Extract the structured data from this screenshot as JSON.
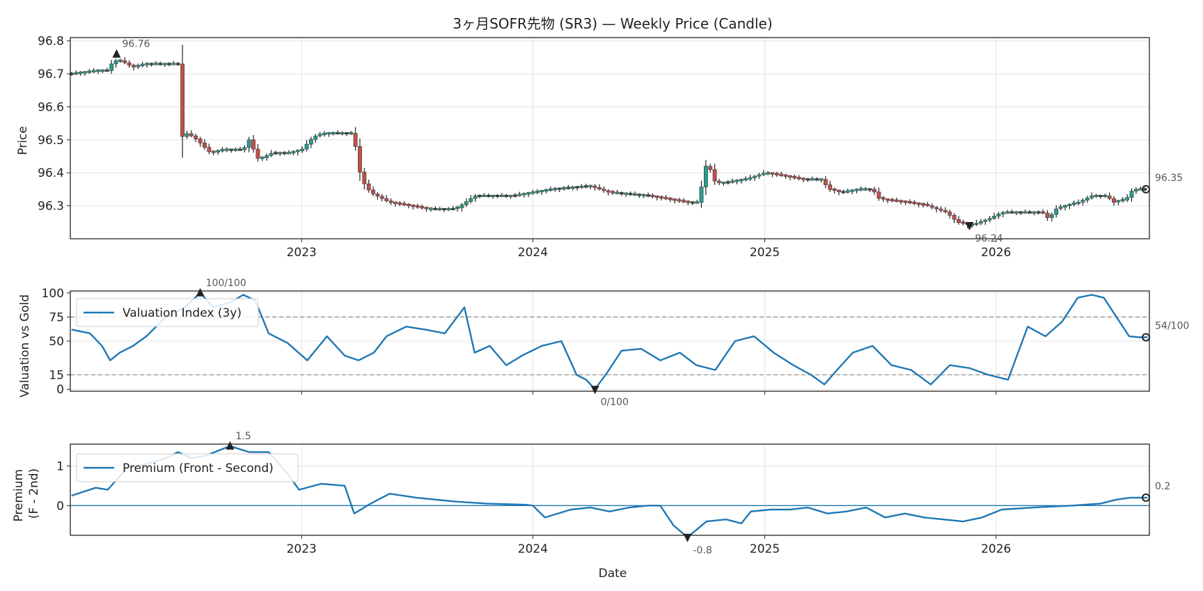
{
  "colors": {
    "up": "#2a9d8f",
    "down": "#c0504d",
    "body_dark": "#444444",
    "line": "#1f77b4",
    "dash": "#999999",
    "grid": "#e3e3e3",
    "marker": "#222222"
  },
  "chart_data": [
    {
      "type": "candlestick",
      "title": "3ヶ月SOFR先物 (SR3) — Weekly Price (Candle)",
      "ylabel": "Price",
      "ylim": [
        96.2,
        96.81
      ],
      "yticks": [
        "96.3",
        "96.4",
        "96.5",
        "96.6",
        "96.7",
        "96.8"
      ],
      "xlim": [
        "2022-01-01",
        "2026-08-31"
      ],
      "xticks": [
        "2023",
        "2024",
        "2025",
        "2026"
      ],
      "grid": true,
      "annotations": {
        "max": {
          "date": "2022-03-15",
          "value": 96.76,
          "label": "96.76"
        },
        "min": {
          "date": "2025-11-20",
          "value": 96.24,
          "label": "96.24"
        },
        "last": {
          "date": "2026-08-28",
          "value": 96.35,
          "label": "96.35"
        }
      },
      "anchors": [
        [
          "2022-01-03",
          96.7
        ],
        [
          "2022-02-15",
          96.71
        ],
        [
          "2022-03-01",
          96.71
        ],
        [
          "2022-03-10",
          96.74
        ],
        [
          "2022-03-22",
          96.74
        ],
        [
          "2022-04-10",
          96.72
        ],
        [
          "2022-05-01",
          96.73
        ],
        [
          "2022-06-20",
          96.73
        ],
        [
          "2022-06-27",
          96.51
        ],
        [
          "2022-07-05",
          96.52
        ],
        [
          "2022-07-20",
          96.5
        ],
        [
          "2022-08-10",
          96.46
        ],
        [
          "2022-09-01",
          96.47
        ],
        [
          "2022-10-01",
          96.47
        ],
        [
          "2022-10-10",
          96.5
        ],
        [
          "2022-10-25",
          96.44
        ],
        [
          "2022-11-15",
          96.46
        ],
        [
          "2022-12-15",
          96.46
        ],
        [
          "2023-01-01",
          96.47
        ],
        [
          "2023-01-20",
          96.51
        ],
        [
          "2023-02-10",
          96.52
        ],
        [
          "2023-03-20",
          96.52
        ],
        [
          "2023-03-27",
          96.48
        ],
        [
          "2023-04-05",
          96.38
        ],
        [
          "2023-04-20",
          96.34
        ],
        [
          "2023-05-20",
          96.31
        ],
        [
          "2023-06-20",
          96.3
        ],
        [
          "2023-07-20",
          96.29
        ],
        [
          "2023-09-01",
          96.29
        ],
        [
          "2023-10-01",
          96.33
        ],
        [
          "2023-12-01",
          96.33
        ],
        [
          "2024-01-01",
          96.34
        ],
        [
          "2024-02-01",
          96.35
        ],
        [
          "2024-04-01",
          96.36
        ],
        [
          "2024-05-01",
          96.34
        ],
        [
          "2024-07-01",
          96.33
        ],
        [
          "2024-08-01",
          96.32
        ],
        [
          "2024-09-01",
          96.31
        ],
        [
          "2024-09-20",
          96.31
        ],
        [
          "2024-09-27",
          96.42
        ],
        [
          "2024-10-05",
          96.42
        ],
        [
          "2024-10-15",
          96.37
        ],
        [
          "2024-11-01",
          96.37
        ],
        [
          "2024-12-01",
          96.38
        ],
        [
          "2025-01-01",
          96.4
        ],
        [
          "2025-02-01",
          96.39
        ],
        [
          "2025-03-01",
          96.38
        ],
        [
          "2025-04-01",
          96.38
        ],
        [
          "2025-04-12",
          96.35
        ],
        [
          "2025-05-01",
          96.34
        ],
        [
          "2025-06-01",
          96.35
        ],
        [
          "2025-06-20",
          96.35
        ],
        [
          "2025-07-01",
          96.32
        ],
        [
          "2025-08-15",
          96.31
        ],
        [
          "2025-09-15",
          96.3
        ],
        [
          "2025-10-15",
          96.28
        ],
        [
          "2025-11-01",
          96.25
        ],
        [
          "2025-11-20",
          96.24
        ],
        [
          "2025-12-20",
          96.26
        ],
        [
          "2026-01-10",
          96.28
        ],
        [
          "2026-02-01",
          96.28
        ],
        [
          "2026-03-15",
          96.28
        ],
        [
          "2026-03-25",
          96.26
        ],
        [
          "2026-04-05",
          96.29
        ],
        [
          "2026-05-10",
          96.31
        ],
        [
          "2026-06-01",
          96.33
        ],
        [
          "2026-06-25",
          96.33
        ],
        [
          "2026-07-05",
          96.31
        ],
        [
          "2026-07-25",
          96.32
        ],
        [
          "2026-08-05",
          96.35
        ],
        [
          "2026-08-28",
          96.35
        ]
      ]
    },
    {
      "type": "line",
      "ylabel": "Valuation vs Gold",
      "ylim": [
        -2,
        102
      ],
      "yticks": [
        "0",
        "15",
        "50",
        "75",
        "100"
      ],
      "hlines": [
        15,
        75
      ],
      "legend": "Valuation Index (3y)",
      "legend_position": "upper-left",
      "grid": true,
      "annotations": {
        "max": {
          "date": "2022-07-25",
          "value": 100,
          "label": "100/100"
        },
        "min": {
          "date": "2024-04-08",
          "value": 0,
          "label": "0/100"
        },
        "last": {
          "date": "2026-08-28",
          "value": 54,
          "label": "54/100"
        }
      },
      "series": [
        {
          "x": [
            "2022-01-03",
            "2022-02-01",
            "2022-02-20",
            "2022-03-05",
            "2022-03-20",
            "2022-04-10",
            "2022-05-01",
            "2022-06-01",
            "2022-07-01",
            "2022-07-25",
            "2022-08-15",
            "2022-09-10",
            "2022-10-01",
            "2022-10-20",
            "2022-11-10",
            "2022-12-10",
            "2023-01-10",
            "2023-02-10",
            "2023-03-10",
            "2023-04-01",
            "2023-04-25",
            "2023-05-15",
            "2023-06-15",
            "2023-07-15",
            "2023-08-15",
            "2023-09-15",
            "2023-10-01",
            "2023-10-25",
            "2023-11-20",
            "2023-12-15",
            "2024-01-15",
            "2024-02-15",
            "2024-03-10",
            "2024-03-25",
            "2024-04-08",
            "2024-04-28",
            "2024-05-20",
            "2024-06-20",
            "2024-07-20",
            "2024-08-20",
            "2024-09-15",
            "2024-10-15",
            "2024-11-15",
            "2024-12-15",
            "2025-01-15",
            "2025-02-15",
            "2025-03-15",
            "2025-04-05",
            "2025-04-25",
            "2025-05-20",
            "2025-06-20",
            "2025-07-20",
            "2025-08-20",
            "2025-09-20",
            "2025-10-20",
            "2025-11-20",
            "2025-12-20",
            "2026-01-20",
            "2026-02-20",
            "2026-03-20",
            "2026-04-15",
            "2026-05-10",
            "2026-06-01",
            "2026-06-20",
            "2026-07-10",
            "2026-07-30",
            "2026-08-15",
            "2026-08-28"
          ],
          "values": [
            62,
            58,
            45,
            30,
            38,
            45,
            55,
            75,
            85,
            100,
            85,
            90,
            98,
            92,
            58,
            48,
            30,
            55,
            35,
            30,
            38,
            55,
            65,
            62,
            58,
            85,
            38,
            45,
            25,
            35,
            45,
            50,
            15,
            10,
            0,
            18,
            40,
            42,
            30,
            38,
            25,
            20,
            50,
            55,
            38,
            25,
            15,
            5,
            20,
            38,
            45,
            25,
            20,
            5,
            25,
            22,
            15,
            10,
            65,
            55,
            70,
            95,
            98,
            95,
            75,
            55,
            54,
            54
          ]
        }
      ]
    },
    {
      "type": "line",
      "ylabel": "Premium\n(F - 2nd)",
      "xlabel": "Date",
      "ylim": [
        -0.75,
        1.55
      ],
      "yticks": [
        "0",
        "1"
      ],
      "xticks": [
        "2023",
        "2024",
        "2025",
        "2026"
      ],
      "hlines": [
        0
      ],
      "legend": "Premium (Front - Second)",
      "legend_position": "upper-left",
      "grid": true,
      "annotations": {
        "max": {
          "date": "2022-09-10",
          "value": 1.5,
          "label": "1.5"
        },
        "min": {
          "date": "2024-09-01",
          "value": -0.8,
          "label": "-0.8"
        },
        "last": {
          "date": "2026-08-28",
          "value": 0.2,
          "label": "0.2"
        }
      },
      "series": [
        {
          "x": [
            "2022-01-03",
            "2022-02-10",
            "2022-03-01",
            "2022-04-01",
            "2022-05-01",
            "2022-06-01",
            "2022-06-20",
            "2022-07-10",
            "2022-08-01",
            "2022-09-10",
            "2022-10-10",
            "2022-11-10",
            "2022-12-10",
            "2022-12-28",
            "2023-02-01",
            "2023-03-10",
            "2023-03-25",
            "2023-04-20",
            "2023-05-20",
            "2023-07-01",
            "2023-09-01",
            "2023-10-20",
            "2023-12-20",
            "2024-01-01",
            "2024-01-20",
            "2024-03-01",
            "2024-04-01",
            "2024-05-01",
            "2024-06-01",
            "2024-07-01",
            "2024-07-20",
            "2024-08-10",
            "2024-09-01",
            "2024-10-01",
            "2024-11-01",
            "2024-11-25",
            "2024-12-10",
            "2025-01-10",
            "2025-02-10",
            "2025-03-10",
            "2025-04-10",
            "2025-05-10",
            "2025-06-10",
            "2025-07-10",
            "2025-08-10",
            "2025-09-10",
            "2025-10-10",
            "2025-11-10",
            "2025-12-10",
            "2026-01-10",
            "2026-03-01",
            "2026-05-01",
            "2026-06-15",
            "2026-07-10",
            "2026-08-01",
            "2026-08-28"
          ],
          "values": [
            0.25,
            0.45,
            0.4,
            0.95,
            1.05,
            1.2,
            1.35,
            1.2,
            1.25,
            1.5,
            1.35,
            1.35,
            0.8,
            0.4,
            0.55,
            0.5,
            -0.2,
            0.05,
            0.3,
            0.2,
            0.1,
            0.05,
            0.02,
            0.0,
            -0.3,
            -0.1,
            -0.05,
            -0.15,
            -0.05,
            0.0,
            0.0,
            -0.5,
            -0.8,
            -0.4,
            -0.35,
            -0.45,
            -0.15,
            -0.1,
            -0.1,
            -0.05,
            -0.2,
            -0.15,
            -0.05,
            -0.3,
            -0.2,
            -0.3,
            -0.35,
            -0.4,
            -0.3,
            -0.1,
            -0.05,
            0.0,
            0.05,
            0.15,
            0.2,
            0.2
          ]
        }
      ]
    }
  ]
}
